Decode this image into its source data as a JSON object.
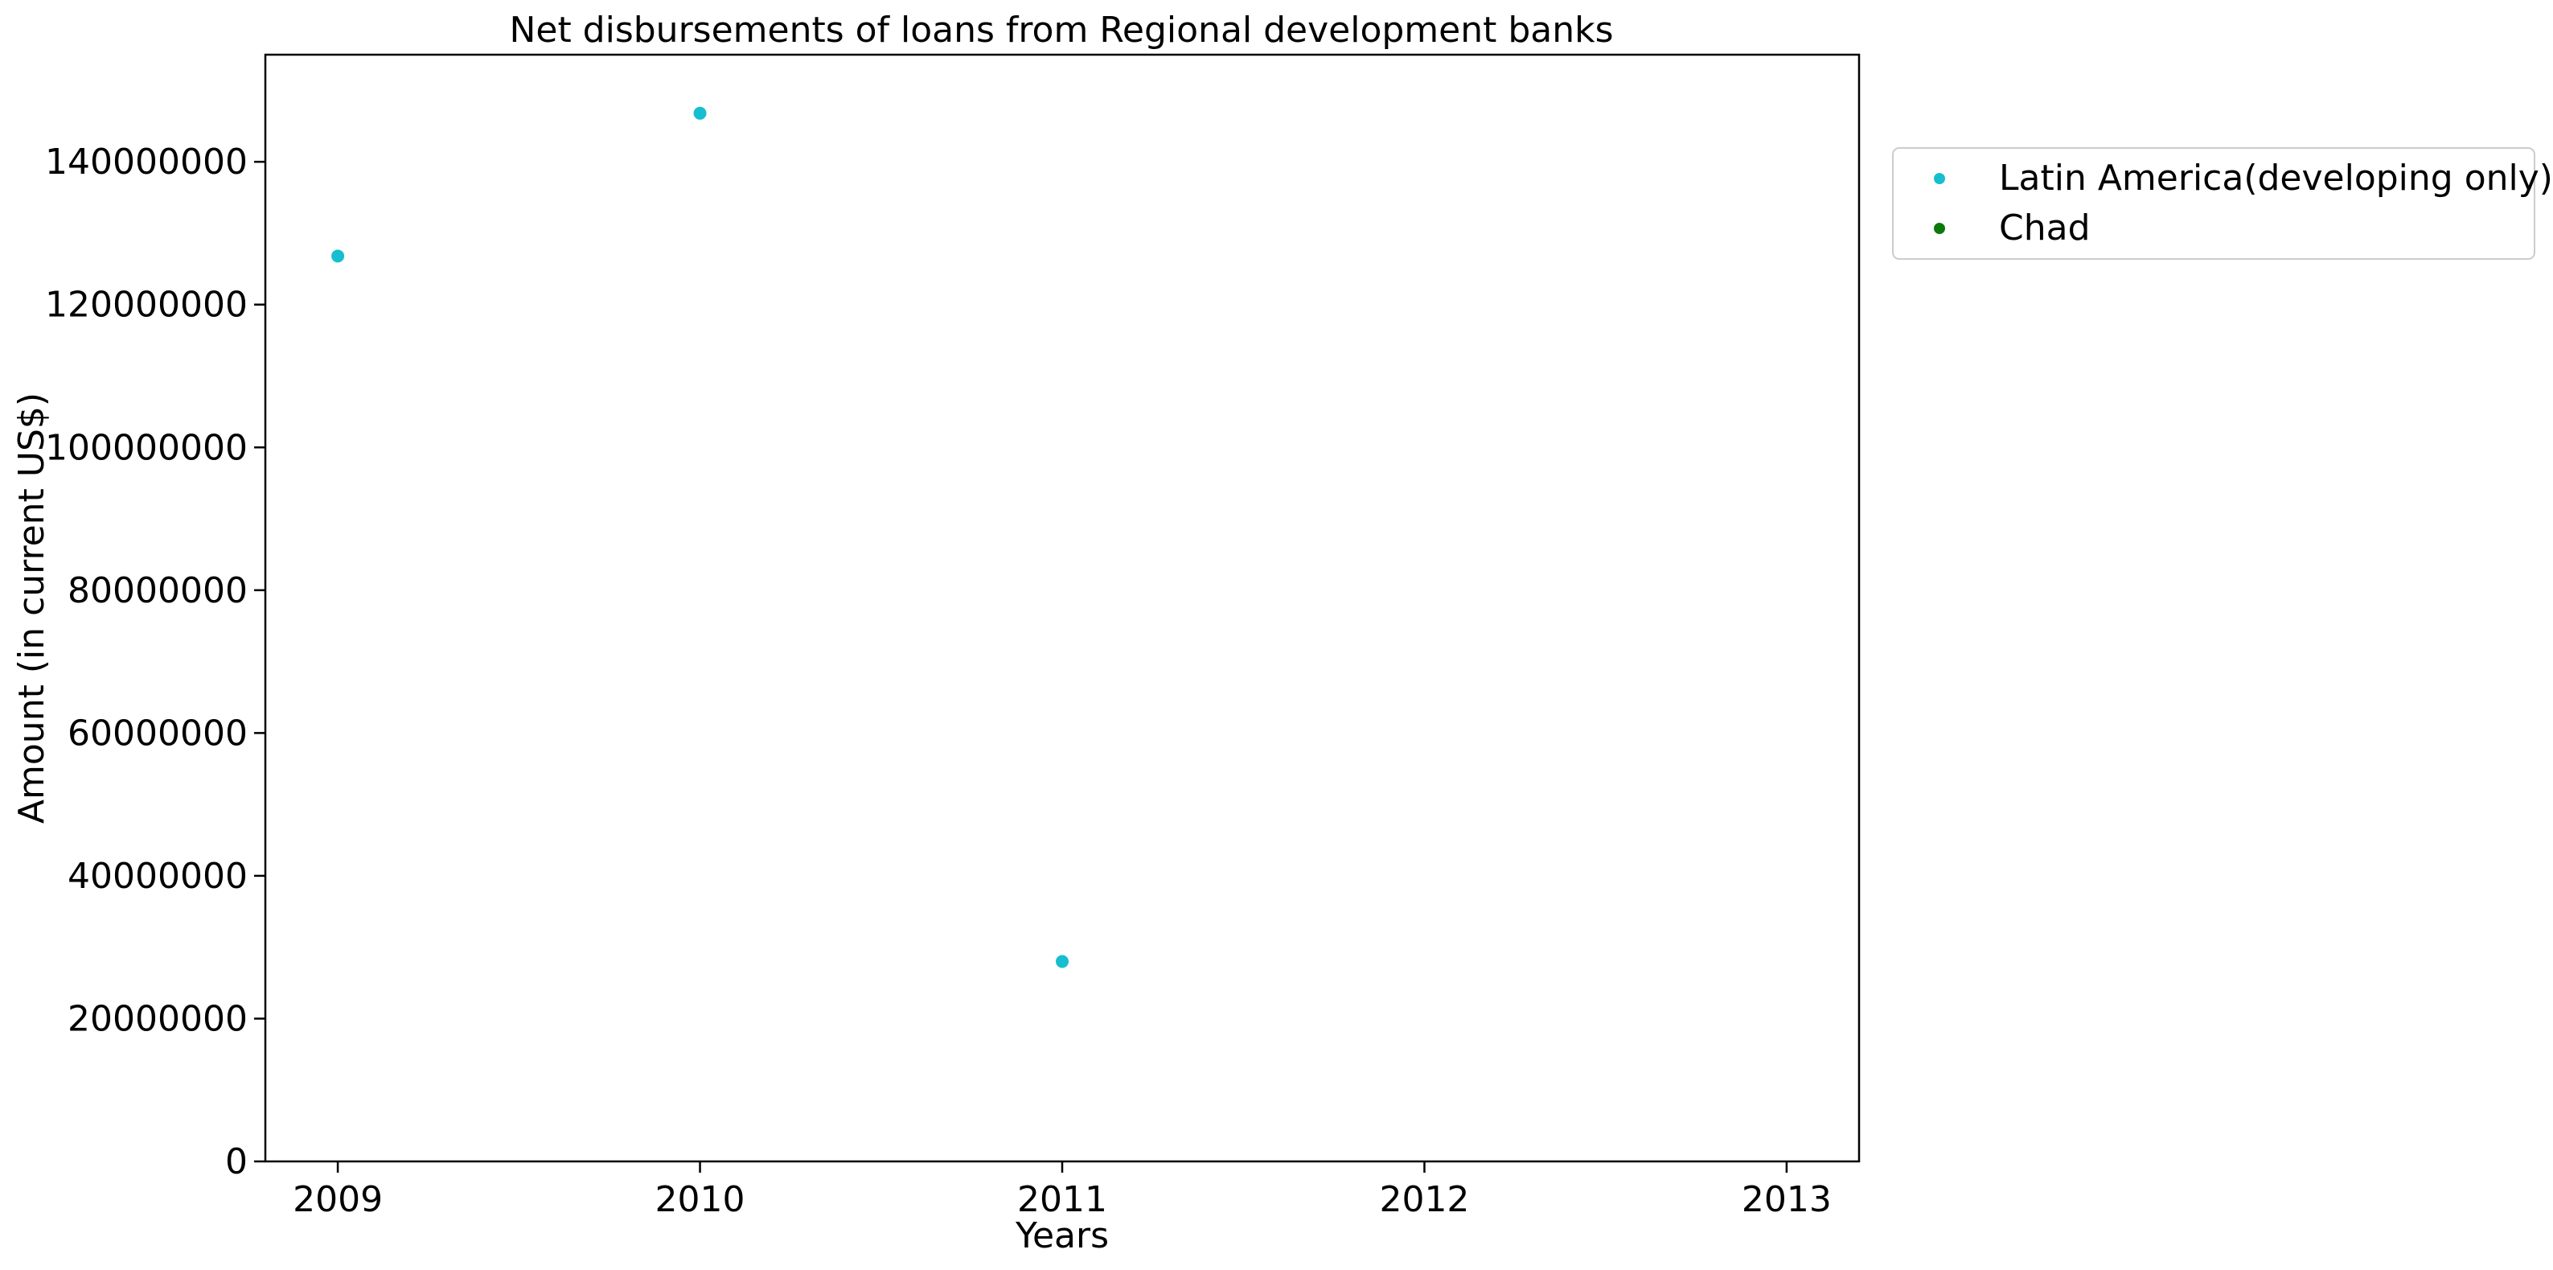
{
  "chart_data": {
    "type": "scatter",
    "title": "Net disbursements of loans from Regional development banks",
    "xlabel": "Years",
    "ylabel": "Amount (in current US$)",
    "x_ticks": [
      "2009",
      "2010",
      "2011",
      "2012",
      "2013"
    ],
    "y_ticks": [
      "0",
      "20000000",
      "40000000",
      "60000000",
      "80000000",
      "100000000",
      "120000000",
      "140000000"
    ],
    "xlim": [
      2008.8,
      2013.2
    ],
    "ylim": [
      0,
      155000000
    ],
    "grid": false,
    "legend_position": "outside-right",
    "series": [
      {
        "name": "Latin America(developing only)",
        "color": "#17becf",
        "points": [
          {
            "x": 2009,
            "y": 126800000
          },
          {
            "x": 2010,
            "y": 146800000
          },
          {
            "x": 2011,
            "y": 28000000
          }
        ]
      },
      {
        "name": "Chad",
        "color": "#0b7a0b",
        "points": []
      }
    ]
  }
}
